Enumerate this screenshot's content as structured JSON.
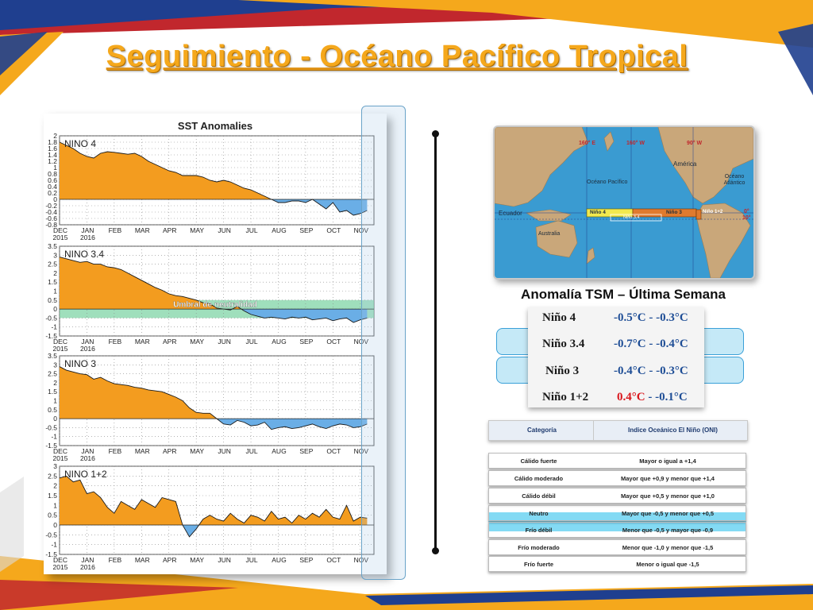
{
  "title": "Seguimiento - Océano Pacífico Tropical",
  "chart_data": [
    {
      "type": "area",
      "title": "SST Anomalies",
      "panel_label": "NINO 4",
      "x_ticks": [
        {
          "month": "DEC",
          "year": "2015"
        },
        {
          "month": "JAN",
          "year": "2016"
        },
        {
          "month": "FEB"
        },
        {
          "month": "MAR"
        },
        {
          "month": "APR"
        },
        {
          "month": "MAY"
        },
        {
          "month": "JUN"
        },
        {
          "month": "JUL"
        },
        {
          "month": "AUG"
        },
        {
          "month": "SEP"
        },
        {
          "month": "OCT"
        },
        {
          "month": "NOV"
        }
      ],
      "y_ticks": [
        "2",
        "1.8",
        "1.6",
        "1.4",
        "1.2",
        "1",
        "0.8",
        "0.6",
        "0.4",
        "0.2",
        "0",
        "-0.2",
        "-0.4",
        "-0.6",
        "-0.8"
      ],
      "ylim": [
        -0.8,
        2
      ],
      "x": [
        0,
        0.25,
        0.5,
        0.75,
        1,
        1.25,
        1.5,
        1.75,
        2,
        2.25,
        2.5,
        2.75,
        3,
        3.25,
        3.5,
        3.75,
        4,
        4.25,
        4.5,
        4.75,
        5,
        5.25,
        5.5,
        5.75,
        6,
        6.25,
        6.5,
        6.75,
        7,
        7.25,
        7.5,
        7.75,
        8,
        8.25,
        8.5,
        8.75,
        9,
        9.25,
        9.5,
        9.75,
        10,
        10.25,
        10.5,
        10.75,
        11,
        11.25
      ],
      "values": [
        1.8,
        1.7,
        1.6,
        1.45,
        1.35,
        1.3,
        1.45,
        1.5,
        1.48,
        1.45,
        1.42,
        1.45,
        1.35,
        1.2,
        1.1,
        1.0,
        0.9,
        0.85,
        0.75,
        0.75,
        0.75,
        0.7,
        0.6,
        0.55,
        0.6,
        0.55,
        0.45,
        0.35,
        0.3,
        0.2,
        0.1,
        0.0,
        -0.1,
        -0.1,
        -0.05,
        -0.05,
        -0.1,
        0.0,
        -0.15,
        -0.3,
        -0.1,
        -0.4,
        -0.35,
        -0.5,
        -0.45,
        -0.35
      ],
      "threshold": null,
      "colors": {
        "positive": "#f39c1f",
        "negative": "#6aaee6",
        "line": "#1a1a1a"
      }
    },
    {
      "type": "area",
      "panel_label": "NINO 3.4",
      "neutral_band_label": "Umbral de neutralidad",
      "neutral_band": [
        -0.5,
        0.5
      ],
      "x_ticks": [
        {
          "month": "DEC",
          "year": "2015"
        },
        {
          "month": "JAN",
          "year": "2016"
        },
        {
          "month": "FEB"
        },
        {
          "month": "MAR"
        },
        {
          "month": "APR"
        },
        {
          "month": "MAY"
        },
        {
          "month": "JUN"
        },
        {
          "month": "JUL"
        },
        {
          "month": "AUG"
        },
        {
          "month": "SEP"
        },
        {
          "month": "OCT"
        },
        {
          "month": "NOV"
        }
      ],
      "y_ticks": [
        "3.5",
        "3",
        "2.5",
        "2",
        "1.5",
        "1",
        "0.5",
        "0",
        "-0.5",
        "-1",
        "-1.5"
      ],
      "ylim": [
        -1.5,
        3.5
      ],
      "x": [
        0,
        0.25,
        0.5,
        0.75,
        1,
        1.25,
        1.5,
        1.75,
        2,
        2.25,
        2.5,
        2.75,
        3,
        3.25,
        3.5,
        3.75,
        4,
        4.25,
        4.5,
        4.75,
        5,
        5.25,
        5.5,
        5.75,
        6,
        6.25,
        6.5,
        6.75,
        7,
        7.25,
        7.5,
        7.75,
        8,
        8.25,
        8.5,
        8.75,
        9,
        9.25,
        9.5,
        9.75,
        10,
        10.25,
        10.5,
        10.75,
        11,
        11.25
      ],
      "values": [
        2.9,
        2.8,
        2.7,
        2.6,
        2.65,
        2.5,
        2.5,
        2.35,
        2.3,
        2.2,
        2.0,
        1.8,
        1.6,
        1.4,
        1.2,
        1.05,
        0.85,
        0.75,
        0.7,
        0.6,
        0.5,
        0.35,
        0.3,
        0.05,
        0.0,
        -0.05,
        0.15,
        -0.1,
        -0.3,
        -0.4,
        -0.5,
        -0.45,
        -0.5,
        -0.55,
        -0.45,
        -0.5,
        -0.45,
        -0.6,
        -0.55,
        -0.5,
        -0.65,
        -0.55,
        -0.5,
        -0.75,
        -0.6,
        -0.5
      ],
      "colors": {
        "positive": "#f39c1f",
        "negative": "#6aaee6",
        "line": "#1a1a1a",
        "band": "#7fd4a6"
      }
    },
    {
      "type": "area",
      "panel_label": "NINO 3",
      "x_ticks": [
        {
          "month": "DEC",
          "year": "2015"
        },
        {
          "month": "JAN",
          "year": "2016"
        },
        {
          "month": "FEB"
        },
        {
          "month": "MAR"
        },
        {
          "month": "APR"
        },
        {
          "month": "MAY"
        },
        {
          "month": "JUN"
        },
        {
          "month": "JUL"
        },
        {
          "month": "AUG"
        },
        {
          "month": "SEP"
        },
        {
          "month": "OCT"
        },
        {
          "month": "NOV"
        }
      ],
      "y_ticks": [
        "3.5",
        "3",
        "2.5",
        "2",
        "1.5",
        "1",
        "0.5",
        "0",
        "-0.5",
        "-1",
        "-1.5"
      ],
      "ylim": [
        -1.5,
        3.5
      ],
      "x": [
        0,
        0.25,
        0.5,
        0.75,
        1,
        1.25,
        1.5,
        1.75,
        2,
        2.25,
        2.5,
        2.75,
        3,
        3.25,
        3.5,
        3.75,
        4,
        4.25,
        4.5,
        4.75,
        5,
        5.25,
        5.5,
        5.75,
        6,
        6.25,
        6.5,
        6.75,
        7,
        7.25,
        7.5,
        7.75,
        8,
        8.25,
        8.5,
        8.75,
        9,
        9.25,
        9.5,
        9.75,
        10,
        10.25,
        10.5,
        10.75,
        11,
        11.25
      ],
      "values": [
        2.9,
        2.7,
        2.6,
        2.5,
        2.45,
        2.2,
        2.3,
        2.1,
        1.95,
        1.9,
        1.85,
        1.75,
        1.7,
        1.6,
        1.55,
        1.5,
        1.35,
        1.2,
        1.0,
        0.6,
        0.35,
        0.3,
        0.3,
        0.0,
        -0.3,
        -0.35,
        -0.1,
        -0.2,
        -0.4,
        -0.35,
        -0.2,
        -0.6,
        -0.5,
        -0.45,
        -0.55,
        -0.5,
        -0.4,
        -0.3,
        -0.45,
        -0.55,
        -0.4,
        -0.3,
        -0.35,
        -0.5,
        -0.45,
        -0.3
      ],
      "colors": {
        "positive": "#f39c1f",
        "negative": "#6aaee6",
        "line": "#1a1a1a"
      }
    },
    {
      "type": "area",
      "panel_label": "NINO 1+2",
      "x_ticks": [
        {
          "month": "DEC",
          "year": "2015"
        },
        {
          "month": "JAN",
          "year": "2016"
        },
        {
          "month": "FEB"
        },
        {
          "month": "MAR"
        },
        {
          "month": "APR"
        },
        {
          "month": "MAY"
        },
        {
          "month": "JUN"
        },
        {
          "month": "JUL"
        },
        {
          "month": "AUG"
        },
        {
          "month": "SEP"
        },
        {
          "month": "OCT"
        },
        {
          "month": "NOV"
        }
      ],
      "y_ticks": [
        "3",
        "2.5",
        "2",
        "1.5",
        "1",
        "0.5",
        "0",
        "-0.5",
        "-1",
        "-1.5"
      ],
      "ylim": [
        -1.5,
        3
      ],
      "x": [
        0,
        0.25,
        0.5,
        0.75,
        1,
        1.25,
        1.5,
        1.75,
        2,
        2.25,
        2.5,
        2.75,
        3,
        3.25,
        3.5,
        3.75,
        4,
        4.25,
        4.5,
        4.75,
        5,
        5.25,
        5.5,
        5.75,
        6,
        6.25,
        6.5,
        6.75,
        7,
        7.25,
        7.5,
        7.75,
        8,
        8.25,
        8.5,
        8.75,
        9,
        9.25,
        9.5,
        9.75,
        10,
        10.25,
        10.5,
        10.75,
        11,
        11.25
      ],
      "values": [
        2.4,
        2.5,
        2.2,
        2.3,
        1.6,
        1.7,
        1.4,
        0.9,
        0.6,
        1.2,
        1.0,
        0.8,
        1.3,
        1.1,
        0.9,
        1.4,
        1.3,
        1.2,
        0.0,
        -0.6,
        -0.2,
        0.3,
        0.5,
        0.3,
        0.2,
        0.6,
        0.3,
        0.1,
        0.5,
        0.4,
        0.2,
        0.7,
        0.3,
        0.4,
        0.1,
        0.5,
        0.3,
        0.6,
        0.4,
        0.8,
        0.4,
        0.3,
        1.0,
        0.2,
        0.4,
        0.35
      ],
      "colors": {
        "positive": "#f39c1f",
        "negative": "#6aaee6",
        "line": "#1a1a1a"
      }
    }
  ],
  "map": {
    "labels": {
      "lon1": "160° E",
      "lon2": "160° W",
      "lon3": "90° W",
      "america": "América",
      "oceano_pacifico": "Océano Pacífico",
      "oceano_atlantico": "Océano Atlántico",
      "ecuador": "Ecuador",
      "australia": "Australia",
      "nino4": "Niño 4",
      "nino34": "Niño 3.4",
      "nino3": "Niño 3",
      "nino12": "Niño 1+2",
      "lat0": "0°",
      "lat10": "10°"
    },
    "colors": {
      "ocean": "#3a9bd1",
      "land": "#c9a77a",
      "nino4": "#f2e94e",
      "nino3": "#e07a2e",
      "nino12": "#e07a2e"
    }
  },
  "anomaly_table": {
    "title": "Anomalía TSM – Última Semana",
    "rows": [
      {
        "region": "Niño 4",
        "range": "-0.5°C - -0.3°C",
        "highlight": false
      },
      {
        "region": "Niño 3.4",
        "range": "-0.7°C - -0.4°C",
        "highlight": true
      },
      {
        "region": "Niño 3",
        "range": "-0.4°C - -0.3°C",
        "highlight": true
      },
      {
        "region": "Niño 1+2",
        "range_warm": "0.4°C",
        "range_rest": " - -0.1°C",
        "highlight": false
      }
    ]
  },
  "oni_table": {
    "header_category": "Categoría",
    "header_index": "Indice Oceánico El Niño (ONI)",
    "rows": [
      {
        "category": "Cálido fuerte",
        "value": "Mayor o igual a +1,4"
      },
      {
        "category": "Cálido moderado",
        "value": "Mayor que +0,9 y menor que +1,4"
      },
      {
        "category": "Cálido débil",
        "value": "Mayor que +0,5 y menor que +1,0"
      },
      {
        "category": "Neutro",
        "value": "Mayor que -0,5 y menor que +0,5"
      },
      {
        "category": "Frío débil",
        "value": "Menor que -0,5 y mayor que -0,9"
      },
      {
        "category": "Frío moderado",
        "value": "Menor que -1,0 y menor que -1,5"
      },
      {
        "category": "Frío fuerte",
        "value": "Menor o igual que -1,5"
      }
    ],
    "highlight_row": "Frío débil"
  },
  "colors": {
    "title": "#f5a81c",
    "band_orange": "#f5a81c",
    "band_blue": "#1f3f8f",
    "band_red": "#c1272d",
    "accent_blue": "#3aa0d8"
  }
}
